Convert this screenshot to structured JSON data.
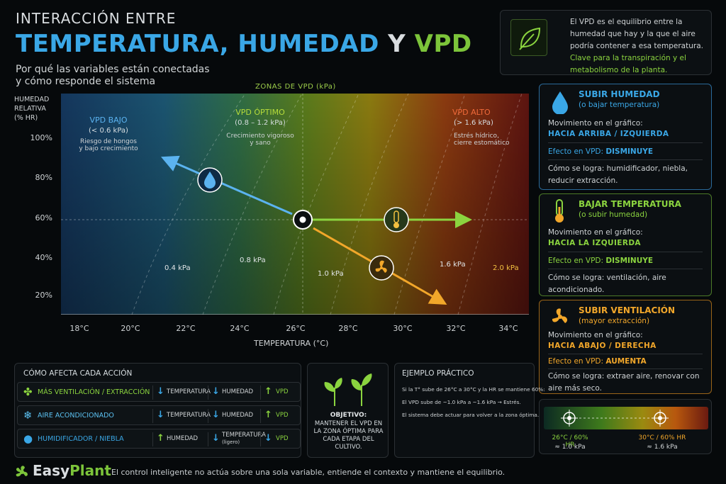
{
  "header": {
    "pre_title": "INTERACCIÓN ENTRE",
    "title_part1": "TEMPERATURA, HUMEDAD",
    "title_part2": "Y",
    "title_part3": "VPD",
    "subtitle_line1": "Por qué las variables están conectadas",
    "subtitle_line2": "y cómo responde el sistema"
  },
  "info_box": {
    "text": "El VPD es el equilibrio entre la humedad que hay y la que el aire podría contener a esa temperatura.",
    "highlight": "Clave para la transpiración y el metabolismo de la planta.",
    "icon": "leaf-icon"
  },
  "chart_data": {
    "type": "vpd-zone-map",
    "zones_title": "ZONAS DE VPD (kPa)",
    "y_label_line1": "HUMEDAD",
    "y_label_line2": "RELATIVA",
    "y_label_line3": "(% HR)",
    "x_label": "TEMPERATURA (°C)",
    "x_ticks": [
      "18°C",
      "20°C",
      "22°C",
      "24°C",
      "26°C",
      "28°C",
      "30°C",
      "32°C",
      "34°C"
    ],
    "y_ticks": [
      "100%",
      "80%",
      "60%",
      "40%",
      "20%"
    ],
    "zones": [
      {
        "name": "VPD BAJO",
        "range": "(< 0.6 kPa)",
        "desc1": "Riesgo de hongos",
        "desc2": "y bajo crecimiento",
        "color": "#5bb3f0"
      },
      {
        "name": "VPD ÓPTIMO",
        "range": "(0.8 – 1.2 kPa)",
        "desc1": "Crecimiento vigoroso",
        "desc2": "y sano",
        "color": "#b7dc3a"
      },
      {
        "name": "VPD ALTO",
        "range": "(> 1.6 kPa)",
        "desc1": "Estrés hídrico,",
        "desc2": "cierre estomático",
        "color": "#f06a3a"
      }
    ],
    "isolines": [
      "0.4 kPa",
      "0.8 kPa",
      "1.0 kPa",
      "1.6 kPa",
      "2.0 kPa"
    ],
    "current_point": {
      "temperature": 26.3,
      "humidity": 60
    },
    "colors": {
      "humidity": "#3aa7e6",
      "temperature": "#8bd43f",
      "ventilation": "#f2a72a"
    }
  },
  "cards": [
    {
      "title": "SUBIR HUMEDAD",
      "subtitle": "(o bajar temperatura)",
      "color": "#3aa7e6",
      "icon": "water-drop-icon",
      "move_label": "Movimiento en el gráfico:",
      "move_value": "HACIA ARRIBA / IZQUIERDA",
      "effect_label": "Efecto en VPD:",
      "effect_value": "DISMINUYE",
      "how_label": "Cómo se logra:",
      "how_value": "humidificador, niebla, reducir extracción."
    },
    {
      "title": "BAJAR TEMPERATURA",
      "subtitle": "(o subir humedad)",
      "color": "#8bd43f",
      "icon": "thermometer-icon",
      "move_label": "Movimiento en el gráfico:",
      "move_value": "HACIA LA IZQUIERDA",
      "effect_label": "Efecto en VPD:",
      "effect_value": "DISMINUYE",
      "how_label": "Cómo se logra:",
      "how_value": "ventilación, aire acondicionado."
    },
    {
      "title": "SUBIR VENTILACIÓN",
      "subtitle": "(mayor extracción)",
      "color": "#f2a72a",
      "icon": "fan-icon",
      "move_label": "Movimiento en el gráfico:",
      "move_value": "HACIA ABAJO / DERECHA",
      "effect_label": "Efecto en VPD:",
      "effect_value": "AUMENTA",
      "how_label": "Cómo se logra:",
      "how_value": "extraer aire, renovar con aire más seco."
    }
  ],
  "actions": {
    "title": "CÓMO AFECTA CADA ACCIÓN",
    "rows": [
      {
        "name": "MÁS VENTILACIÓN / EXTRACCIÓN",
        "color": "#8bd43f",
        "c1": "TEMPERATURA",
        "c1dir": "↓",
        "c2": "HUMEDAD",
        "c2dir": "↓",
        "c3": "VPD",
        "c3dir": "↑"
      },
      {
        "name": "AIRE ACONDICIONADO",
        "color": "#5bc0f0",
        "c1": "TEMPERATURA",
        "c1dir": "↓",
        "c2": "HUMEDAD",
        "c2dir": "↓",
        "c3": "VPD",
        "c3dir": "↑"
      },
      {
        "name": "HUMIDIFICADOR / NIEBLA",
        "color": "#3aa7e6",
        "c1": "HUMEDAD",
        "c1dir": "↑",
        "c2": "TEMPERATURA",
        "c2b": "(ligero)",
        "c2dir": "↓",
        "c3": "VPD",
        "c3dir": "↓"
      }
    ]
  },
  "objective": {
    "label": "OBJETIVO:",
    "text": "MANTENER EL VPD EN LA ZONA ÓPTIMA PARA CADA ETAPA DEL CULTIVO."
  },
  "example": {
    "title": "EJEMPLO PRÁCTICO",
    "line1": "Si la T° sube de 26°C a 30°C y la HR se mantiene 60%:",
    "line2": "El VPD sube de ~1.0 kPa a ~1.6 kPa → Estrés.",
    "line3": "El sistema debe actuar para volver a la zona óptima.",
    "start_label": "26°C / 60% HR",
    "start_vpd": "≈ 1.0 kPa",
    "end_label": "30°C / 60% HR",
    "end_vpd": "≈ 1.6 kPa"
  },
  "footer": {
    "brand_easy": "Easy",
    "brand_plant": "Plant",
    "text": "El control inteligente no actúa sobre una sola variable, entiende el contexto y mantiene el equilibrio."
  }
}
